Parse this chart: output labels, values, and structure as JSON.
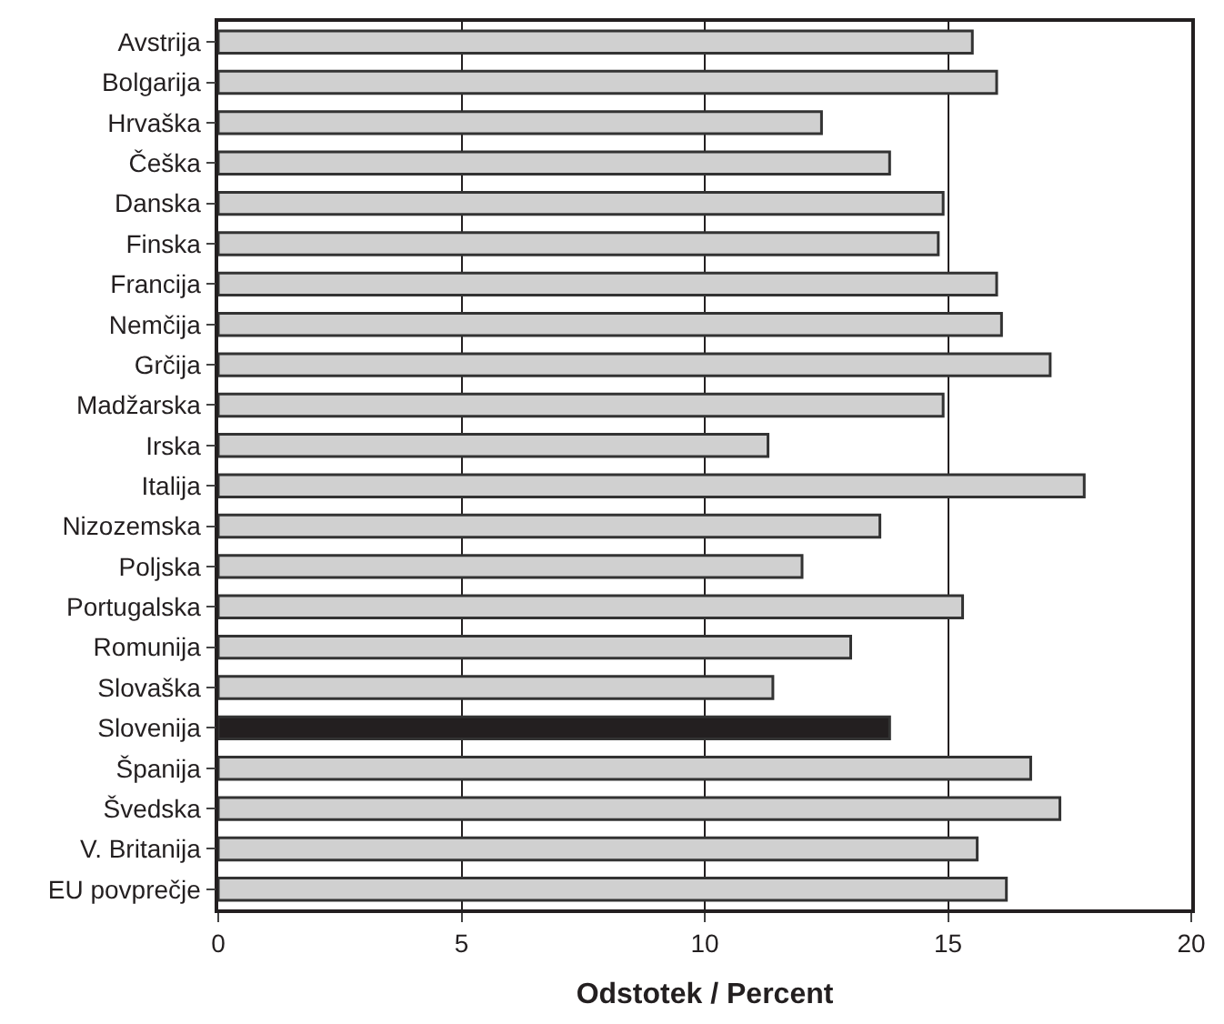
{
  "chart_data": {
    "type": "bar",
    "orientation": "horizontal",
    "xlabel": "Odstotek / Percent",
    "categories": [
      "Avstrija",
      "Bolgarija",
      "Hrvaška",
      "Češka",
      "Danska",
      "Finska",
      "Francija",
      "Nemčija",
      "Grčija",
      "Madžarska",
      "Irska",
      "Italija",
      "Nizozemska",
      "Poljska",
      "Portugalska",
      "Romunija",
      "Slovaška",
      "Slovenija",
      "Španija",
      "Švedska",
      "V. Britanija",
      "EU povprečje"
    ],
    "values": [
      15.5,
      16.0,
      12.4,
      13.8,
      14.9,
      14.8,
      16.0,
      16.1,
      17.1,
      14.9,
      11.3,
      17.8,
      13.6,
      12.0,
      15.3,
      13.0,
      11.4,
      13.8,
      16.7,
      17.3,
      15.6,
      16.2
    ],
    "colors": [
      "#d0d0d0",
      "#d0d0d0",
      "#d0d0d0",
      "#d0d0d0",
      "#d0d0d0",
      "#d0d0d0",
      "#d0d0d0",
      "#d0d0d0",
      "#d0d0d0",
      "#d0d0d0",
      "#d0d0d0",
      "#d0d0d0",
      "#d0d0d0",
      "#d0d0d0",
      "#d0d0d0",
      "#d0d0d0",
      "#d0d0d0",
      "#231f20",
      "#d0d0d0",
      "#d0d0d0",
      "#d0d0d0",
      "#d0d0d0"
    ],
    "xlim": [
      0,
      20
    ],
    "xticks": [
      0,
      5,
      10,
      15,
      20
    ],
    "grid": "x"
  }
}
